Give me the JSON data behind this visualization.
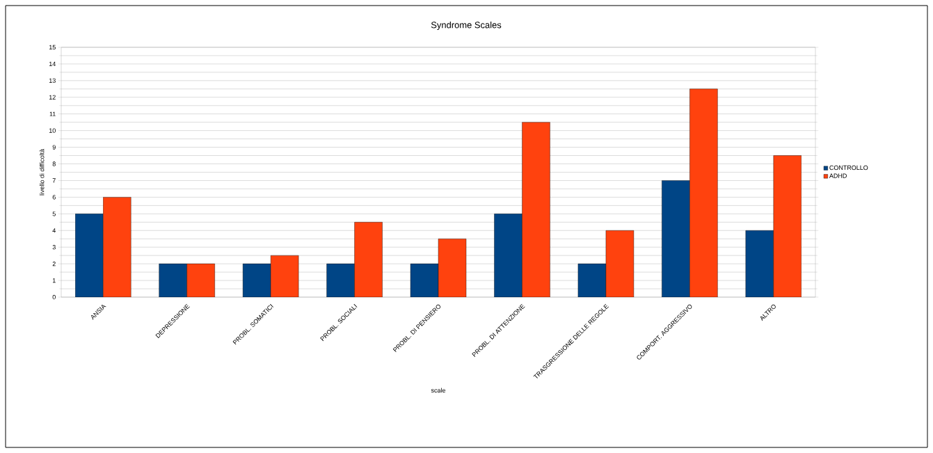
{
  "chart_data": {
    "type": "bar",
    "title": "Syndrome Scales",
    "xlabel": "scale",
    "ylabel": "livello di difficoltà",
    "categories": [
      "ANSIA",
      "DEPRESSIONE",
      "PROBL. SOMATICI",
      "PROBL. SOCIALI",
      "PROBL. DI PENSIERO",
      "PROBL. DI ATTENZIONE",
      "TRASGRESSIONE DELLE REGOLE",
      "COMPORT. AGGRESSIVO",
      "ALTRO"
    ],
    "series": [
      {
        "name": "CONTROLLO",
        "color": "#004586",
        "values": [
          5,
          2,
          2,
          2,
          2,
          5,
          2,
          7,
          4
        ]
      },
      {
        "name": "ADHD",
        "color": "#ff420e",
        "values": [
          6,
          2,
          2.5,
          4.5,
          3.5,
          10.5,
          4,
          12.5,
          8.5
        ]
      }
    ],
    "ylim": [
      0,
      15
    ],
    "yticks": [
      0,
      1,
      2,
      3,
      4,
      5,
      6,
      7,
      8,
      9,
      10,
      11,
      12,
      13,
      14,
      15
    ],
    "grid": "y",
    "legend": "right"
  }
}
